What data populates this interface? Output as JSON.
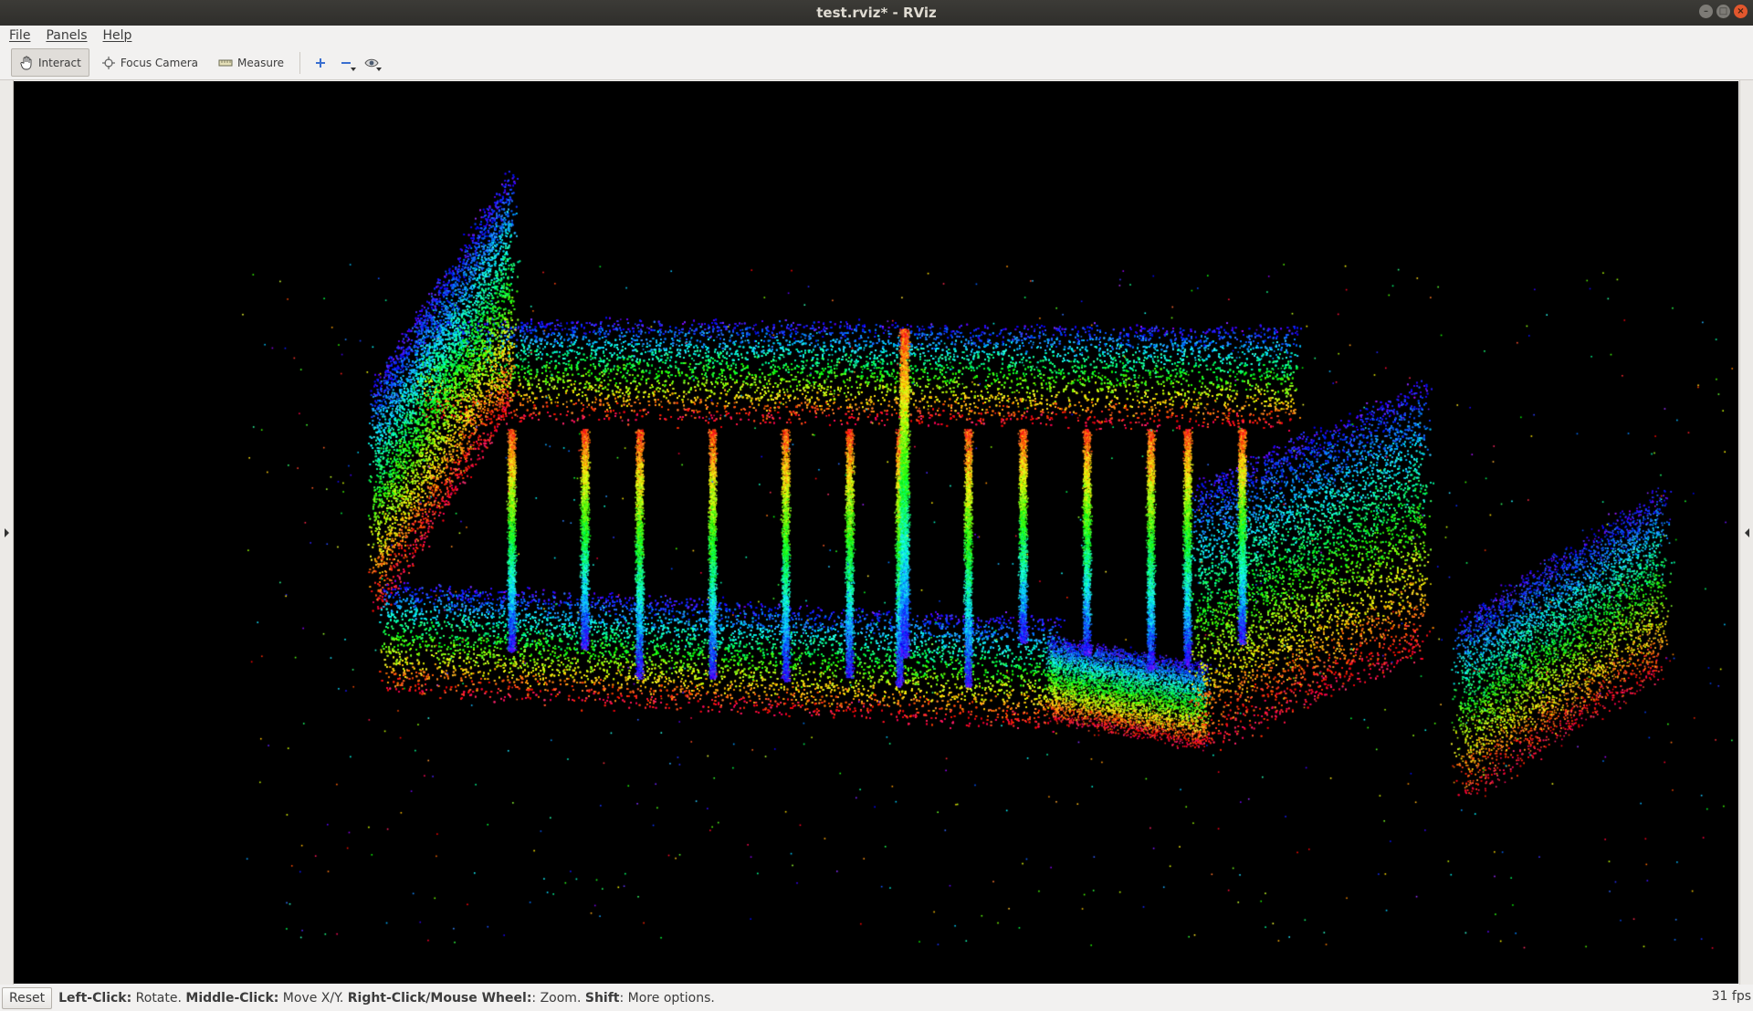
{
  "window": {
    "title": "test.rviz* - RViz",
    "controls": [
      "minimize",
      "maximize",
      "close"
    ]
  },
  "menubar": {
    "items": [
      {
        "label": "File"
      },
      {
        "label": "Panels"
      },
      {
        "label": "Help"
      }
    ]
  },
  "toolbar": {
    "tools": [
      {
        "label": "Interact",
        "icon": "hand-icon",
        "active": true
      },
      {
        "label": "Focus Camera",
        "icon": "crosshair-icon",
        "active": false
      },
      {
        "label": "Measure",
        "icon": "ruler-icon",
        "active": false
      }
    ],
    "buttons": [
      {
        "name": "add-tool-button",
        "icon": "plus-icon"
      },
      {
        "name": "remove-tool-button",
        "icon": "minus-icon"
      },
      {
        "name": "view-tool-button",
        "icon": "eye-icon"
      }
    ]
  },
  "viewport": {
    "background": "#000000",
    "content": "point-cloud",
    "color_scheme": "rainbow"
  },
  "statusbar": {
    "reset_label": "Reset",
    "help": [
      {
        "key": "Left-Click:",
        "text": " Rotate. "
      },
      {
        "key": "Middle-Click:",
        "text": " Move X/Y. "
      },
      {
        "key": "Right-Click/Mouse Wheel:",
        "text": ": Zoom. "
      },
      {
        "key": "Shift",
        "text": ": More options."
      }
    ],
    "fps": "31 fps"
  }
}
